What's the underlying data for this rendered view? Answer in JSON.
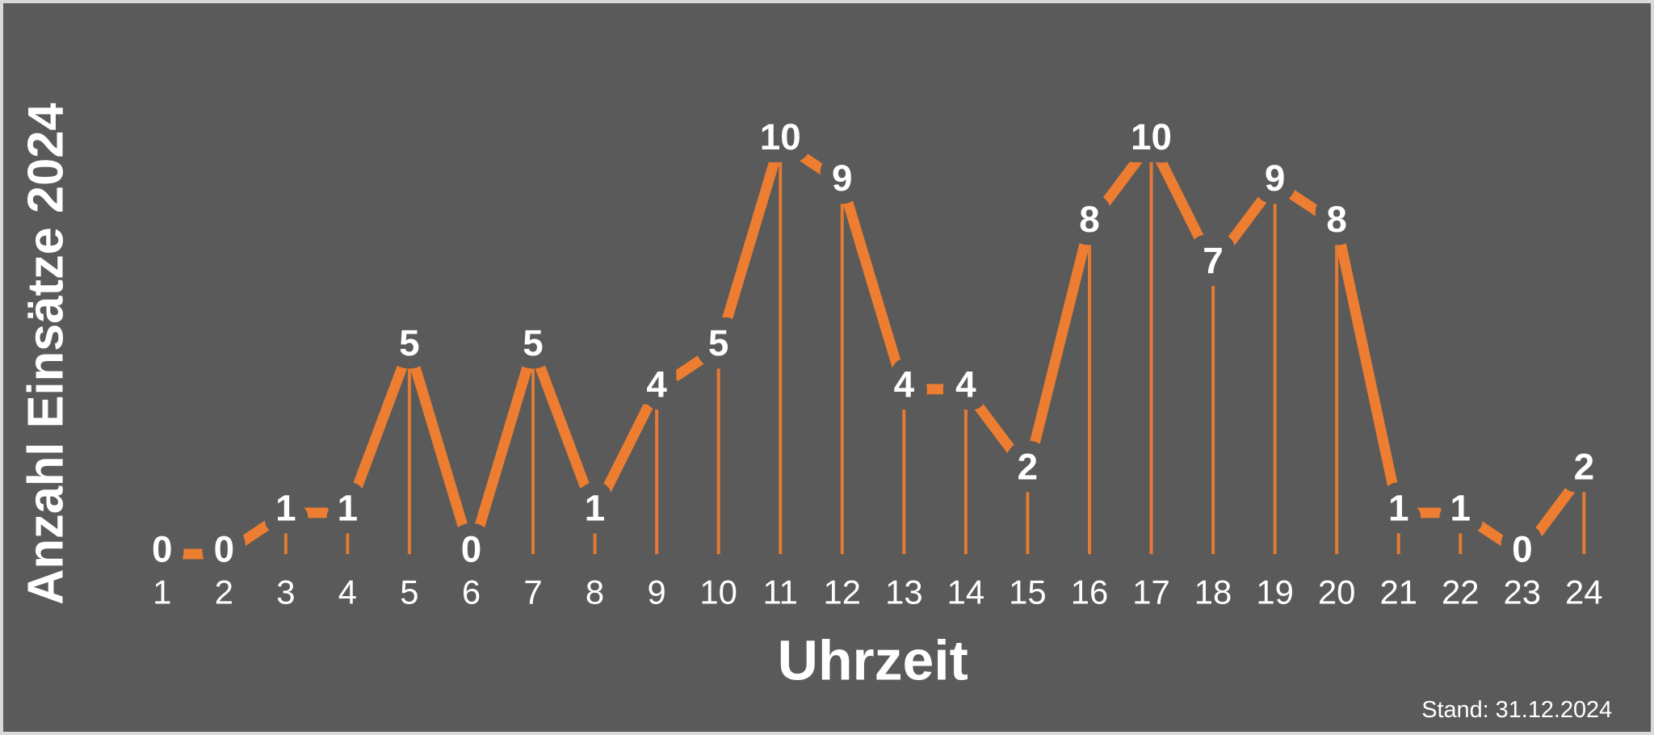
{
  "chart_data": {
    "type": "line",
    "title": "",
    "categories": [
      "1",
      "2",
      "3",
      "4",
      "5",
      "6",
      "7",
      "8",
      "9",
      "10",
      "11",
      "12",
      "13",
      "14",
      "15",
      "16",
      "17",
      "18",
      "19",
      "20",
      "21",
      "22",
      "23",
      "24"
    ],
    "values": [
      0,
      0,
      1,
      1,
      5,
      0,
      5,
      1,
      4,
      5,
      10,
      9,
      4,
      4,
      2,
      8,
      10,
      7,
      9,
      8,
      1,
      1,
      0,
      2
    ],
    "ylabel": "Anzahl Einsätze 2024",
    "xlabel": "Uhrzeit",
    "footer": "Stand: 31.12.2024",
    "ylim": [
      0,
      10
    ],
    "grid": false,
    "legend": false,
    "data_labels": true,
    "drop_lines": true,
    "colors": {
      "line": "#ED7D31",
      "background": "#5A5A5A",
      "label_text": "#FFFFFF",
      "frame_border": "#D9D9D9"
    }
  }
}
